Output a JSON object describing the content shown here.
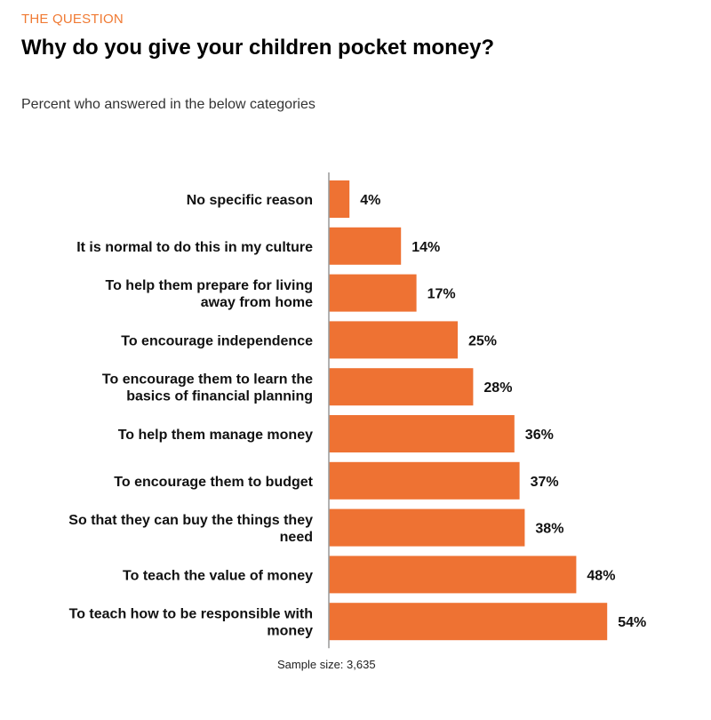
{
  "header": {
    "kicker": "THE QUESTION",
    "title": "Why do you give your children pocket money?",
    "subtitle": "Percent who answered in the below categories"
  },
  "footer": {
    "sample_size": "Sample size: 3,635"
  },
  "colors": {
    "accent": "#f07a33",
    "bar": "#ee7233",
    "axis": "#999999"
  },
  "chart_data": {
    "type": "bar",
    "orientation": "horizontal",
    "categories": [
      [
        "No specific reason"
      ],
      [
        "It is normal to do this in my culture"
      ],
      [
        "To help them prepare for living",
        "away from home"
      ],
      [
        "To encourage independence"
      ],
      [
        "To encourage them to learn the",
        "basics of financial planning"
      ],
      [
        "To help them manage money"
      ],
      [
        "To encourage them to budget"
      ],
      [
        "So that they can buy the things they",
        "need"
      ],
      [
        "To teach the value of money"
      ],
      [
        "To teach how to be responsible with",
        "money"
      ]
    ],
    "values": [
      4,
      14,
      17,
      25,
      28,
      36,
      37,
      38,
      48,
      54
    ],
    "value_labels": [
      "4%",
      "14%",
      "17%",
      "25%",
      "28%",
      "36%",
      "37%",
      "38%",
      "48%",
      "54%"
    ],
    "xlim": [
      0,
      60
    ],
    "grid": false,
    "legend": "none"
  }
}
